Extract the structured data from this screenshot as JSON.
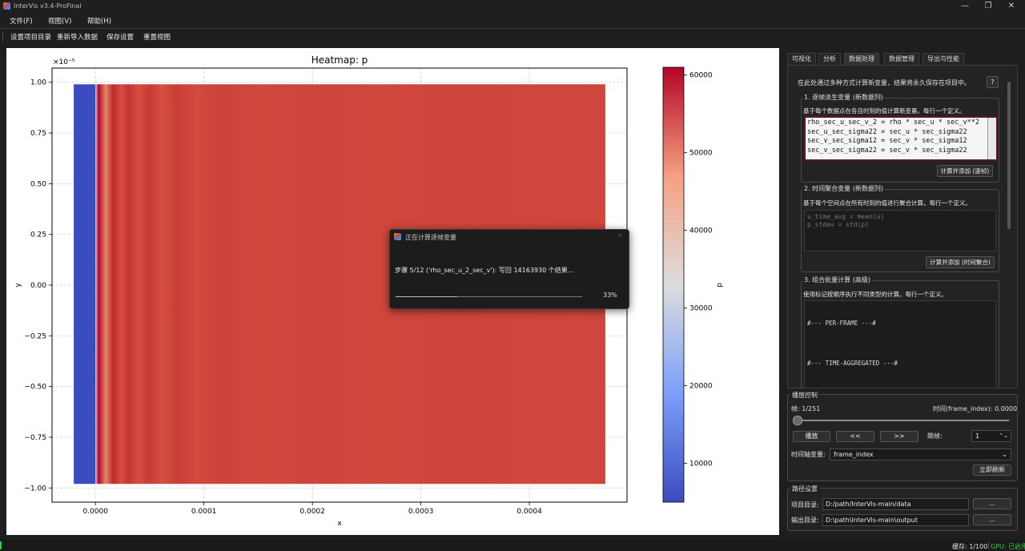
{
  "window": {
    "title": "InterVis v3.4-ProFinal",
    "controls": {
      "minimize": "—",
      "maximize": "❐",
      "close": "✕"
    }
  },
  "menu": [
    "文件(F)",
    "视图(V)",
    "帮助(H)"
  ],
  "toolbar": [
    "设置项目目录",
    "重新导入数据",
    "保存设置",
    "重置视图"
  ],
  "chart_data": {
    "type": "heatmap",
    "title": "Heatmap: p",
    "xlabel": "x",
    "ylabel": "y",
    "colorbar_label": "p",
    "y_scale_note": "×10⁻⁵",
    "x_ticks": [
      "0.0000",
      "0.0001",
      "0.0002",
      "0.0003",
      "0.0004"
    ],
    "x_tick_values": [
      0.0,
      0.0001,
      0.0002,
      0.0003,
      0.0004
    ],
    "y_ticks": [
      "1.00",
      "0.75",
      "0.50",
      "0.25",
      "0.00",
      "−0.25",
      "−0.50",
      "−0.75",
      "−1.00"
    ],
    "y_tick_values": [
      1.0,
      0.75,
      0.5,
      0.25,
      0.0,
      -0.25,
      -0.5,
      -0.75,
      -1.0
    ],
    "colorbar_ticks": [
      "60000",
      "50000",
      "40000",
      "30000",
      "20000",
      "10000"
    ],
    "colorbar_tick_values": [
      60000,
      50000,
      40000,
      30000,
      20000,
      10000
    ],
    "xlim": [
      -4e-05,
      0.00049
    ],
    "ylim": [
      -1.07,
      1.07
    ],
    "clim": [
      5000,
      61000
    ],
    "colormap": "coolwarm",
    "grid": true,
    "data_extent": {
      "x": [
        -2e-05,
        0.00047
      ],
      "y": [
        -0.98,
        0.99
      ]
    },
    "regions": [
      {
        "x_range": [
          -2e-05,
          0.0
        ],
        "p": 8000
      },
      {
        "x_range": [
          0.0,
          0.00047
        ],
        "p": 56000
      }
    ]
  },
  "tabs": [
    "可视化",
    "分析",
    "数据处理",
    "数据管理",
    "导出与性能"
  ],
  "active_tab": "数据处理",
  "data_processing": {
    "intro": "在此处通过多种方式计算新变量，结果将永久保存在项目中。",
    "help_button": "?",
    "section1": {
      "title": "1. 逐帧派生变量 (新数据列)",
      "desc": "基于每个数据点在各自时刻的值计算新变量。每行一个定义。",
      "lines": [
        "rho_sec_u_sec_v_2 = rho * sec_u * sec_v**2",
        "sec_u_sec_sigma22 = sec_u * sec_sigma22",
        "sec_v_sec_sigma12 = sec_v * sec_sigma12",
        "sec_v_sec_sigma22 = sec_v * sec_sigma22"
      ],
      "button": "计算并添加 (逐帧)"
    },
    "section2": {
      "title": "2. 时间聚合变量 (新数据列)",
      "desc": "基于每个空间点在所有时刻的值进行聚合计算。每行一个定义。",
      "placeholder_lines": [
        "u_time_avg = mean(u)",
        "p_stdev = std(p)"
      ],
      "button": "计算并添加 (时间聚合)"
    },
    "section3": {
      "title": "3. 组合批量计算 (高级)",
      "desc": "使用标记按顺序执行不同类型的计算。每行一个定义。",
      "lines": [
        "#--- PER-FRAME ---#",
        "",
        "#--- TIME-AGGREGATED ---#"
      ]
    }
  },
  "playback": {
    "title": "播放控制",
    "frame_label": "帧: 1/251",
    "time_label": "时间(frame_index): 0.0000",
    "slider_value": 0.004,
    "play_button": "播放",
    "prev_button": "<<",
    "next_button": ">>",
    "skip_label": "跳帧:",
    "skip_value": "1",
    "time_axis_label": "时间轴变量:",
    "time_axis_value": "frame_index",
    "refresh_button": "立即刷新"
  },
  "paths": {
    "title": "路径设置",
    "project_label": "项目目录:",
    "project_value": "D:/path/InterVis-main/data",
    "output_label": "输出目录:",
    "output_value": "D:\\path\\InterVis-main\\output",
    "browse": "..."
  },
  "dialog": {
    "title": "正在计算逐帧变量",
    "close": "✕",
    "message": "步骤 5/12 ('rho_sec_u_2_sec_v'): 写回 14163930 个结果...",
    "progress": 0.33,
    "progress_text": "33%"
  },
  "status": {
    "cache": "缓存: 1/100",
    "gpu": "GPU: 已启用"
  },
  "colors": {
    "accent": "#3d8fd6",
    "gpu_green": "#2ecc40",
    "dark_bg": "#1e1e1e"
  }
}
